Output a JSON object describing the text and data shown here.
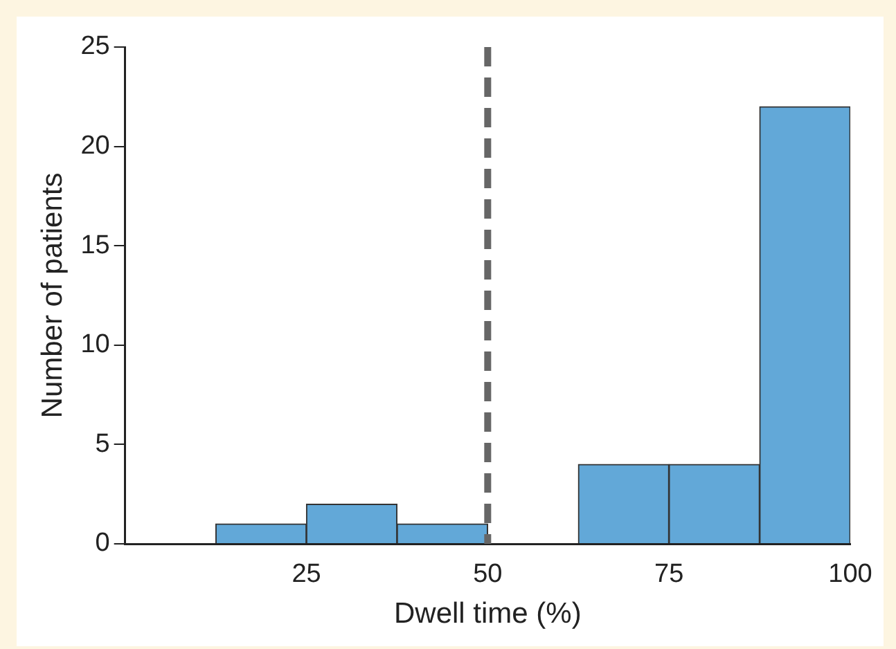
{
  "chart_data": {
    "type": "histogram",
    "xlabel": "Dwell time (%)",
    "ylabel": "Number of patients",
    "bins": [
      12.5,
      25,
      37.5,
      50,
      62.5,
      75,
      87.5,
      100
    ],
    "values": [
      1,
      2,
      1,
      0,
      4,
      4,
      22
    ],
    "color": "#62a8d8",
    "xlim": [
      0,
      100
    ],
    "xticks": [
      25,
      50,
      75,
      100
    ],
    "ylim": [
      0,
      25
    ],
    "yticks": [
      0,
      5,
      10,
      15,
      20,
      25
    ],
    "grid": false,
    "legend": false,
    "ref_lines": [
      {
        "axis": "x",
        "value": 50,
        "color": "#666666",
        "line_style": "dashed"
      }
    ]
  }
}
